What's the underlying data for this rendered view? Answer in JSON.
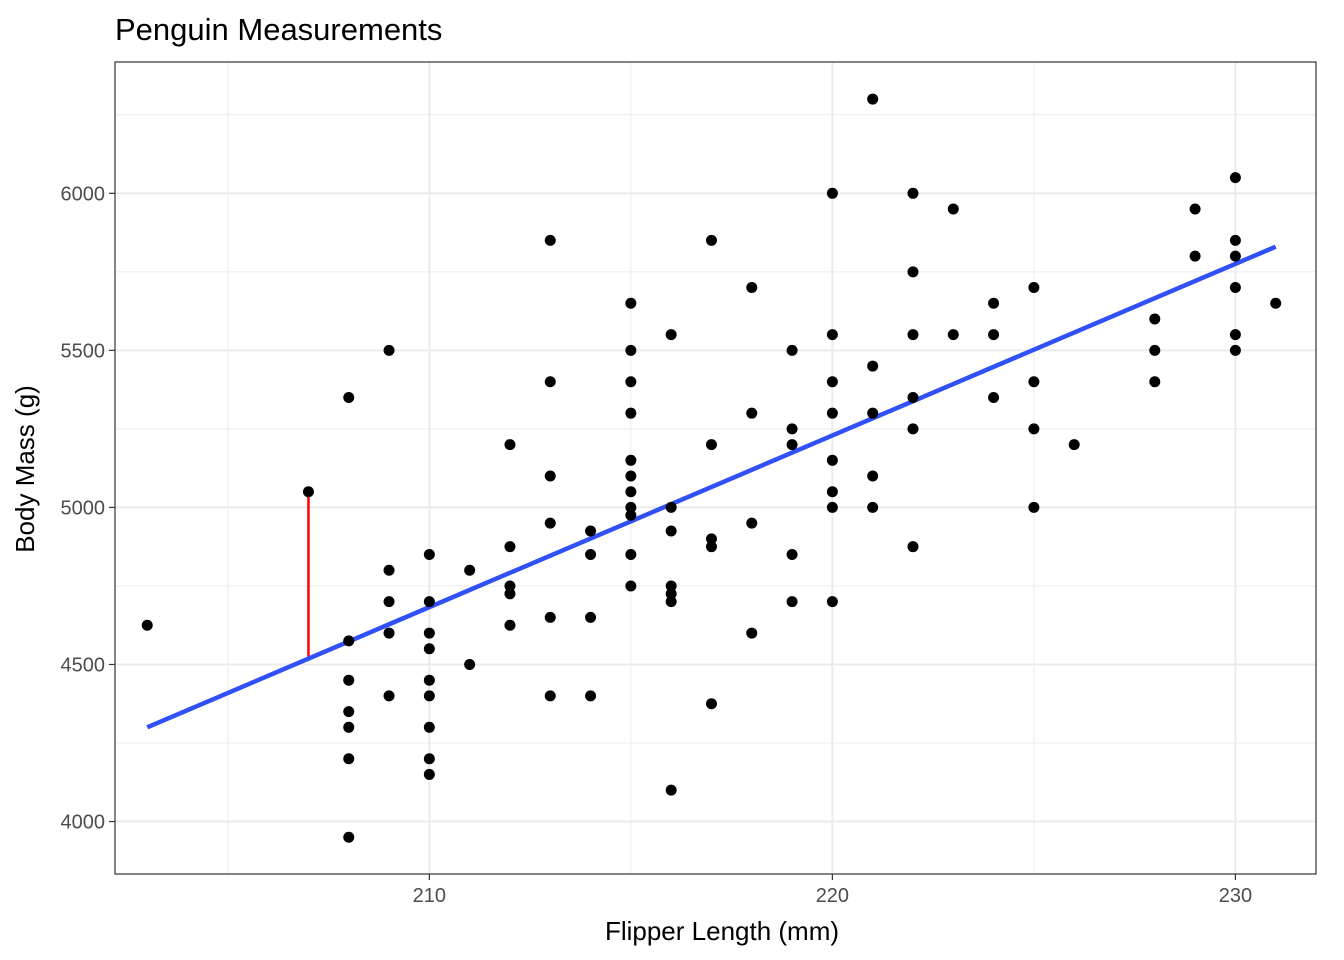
{
  "chart_data": {
    "type": "scatter",
    "title": "Penguin Measurements",
    "xlabel": "Flipper Length (mm)",
    "ylabel": "Body Mass (g)",
    "xlim": [
      202.2,
      232.0
    ],
    "ylim": [
      3833,
      6418
    ],
    "x_ticks": [
      210,
      220,
      230
    ],
    "x_tick_labels": [
      "210",
      "220",
      "230"
    ],
    "x_minor_ticks": [
      205,
      215,
      225
    ],
    "y_ticks": [
      4000,
      4500,
      5000,
      5500,
      6000
    ],
    "y_tick_labels": [
      "4000",
      "4500",
      "5000",
      "5500",
      "6000"
    ],
    "y_minor_ticks": [
      4250,
      4750,
      5250,
      5750,
      6250
    ],
    "grid": true,
    "legend": "none",
    "colors": {
      "points": "#000000",
      "fit_line": "#3050f8",
      "residual": "#ff0000",
      "grid": "#ebebeb",
      "panel_border": "#333333"
    },
    "fit_line": {
      "x": [
        203,
        231
      ],
      "y": [
        4300,
        5830
      ]
    },
    "highlight_residual": {
      "x": 207,
      "y_observed": 5050,
      "y_fitted": 4520
    },
    "points": [
      [
        203,
        4625
      ],
      [
        207,
        5050
      ],
      [
        208,
        5350
      ],
      [
        208,
        4575
      ],
      [
        208,
        4450
      ],
      [
        208,
        4350
      ],
      [
        208,
        4300
      ],
      [
        208,
        4200
      ],
      [
        208,
        3950
      ],
      [
        209,
        5500
      ],
      [
        209,
        4800
      ],
      [
        209,
        4700
      ],
      [
        209,
        4600
      ],
      [
        209,
        4400
      ],
      [
        210,
        4850
      ],
      [
        210,
        4700
      ],
      [
        210,
        4600
      ],
      [
        210,
        4550
      ],
      [
        210,
        4450
      ],
      [
        210,
        4400
      ],
      [
        210,
        4300
      ],
      [
        210,
        4200
      ],
      [
        210,
        4150
      ],
      [
        211,
        4800
      ],
      [
        211,
        4500
      ],
      [
        212,
        5200
      ],
      [
        212,
        4875
      ],
      [
        212,
        4750
      ],
      [
        212,
        4725
      ],
      [
        212,
        4625
      ],
      [
        213,
        5850
      ],
      [
        213,
        5400
      ],
      [
        213,
        5100
      ],
      [
        213,
        4950
      ],
      [
        213,
        4650
      ],
      [
        213,
        4400
      ],
      [
        214,
        4925
      ],
      [
        214,
        4850
      ],
      [
        214,
        4650
      ],
      [
        214,
        4400
      ],
      [
        215,
        5650
      ],
      [
        215,
        5500
      ],
      [
        215,
        5400
      ],
      [
        215,
        5300
      ],
      [
        215,
        5150
      ],
      [
        215,
        5100
      ],
      [
        215,
        5050
      ],
      [
        215,
        5000
      ],
      [
        215,
        4975
      ],
      [
        215,
        4850
      ],
      [
        215,
        4750
      ],
      [
        216,
        5550
      ],
      [
        216,
        5000
      ],
      [
        216,
        4925
      ],
      [
        216,
        4750
      ],
      [
        216,
        4725
      ],
      [
        216,
        4700
      ],
      [
        216,
        4100
      ],
      [
        217,
        5850
      ],
      [
        217,
        5200
      ],
      [
        217,
        4900
      ],
      [
        217,
        4875
      ],
      [
        217,
        4375
      ],
      [
        218,
        5700
      ],
      [
        218,
        5300
      ],
      [
        218,
        4950
      ],
      [
        218,
        4600
      ],
      [
        219,
        5500
      ],
      [
        219,
        5250
      ],
      [
        219,
        5200
      ],
      [
        219,
        4850
      ],
      [
        219,
        4700
      ],
      [
        220,
        6000
      ],
      [
        220,
        5550
      ],
      [
        220,
        5400
      ],
      [
        220,
        5300
      ],
      [
        220,
        5150
      ],
      [
        220,
        5050
      ],
      [
        220,
        5000
      ],
      [
        220,
        4700
      ],
      [
        221,
        6300
      ],
      [
        221,
        5450
      ],
      [
        221,
        5300
      ],
      [
        221,
        5100
      ],
      [
        221,
        5000
      ],
      [
        222,
        6000
      ],
      [
        222,
        5750
      ],
      [
        222,
        5550
      ],
      [
        222,
        5350
      ],
      [
        222,
        5250
      ],
      [
        222,
        4875
      ],
      [
        223,
        5950
      ],
      [
        223,
        5550
      ],
      [
        224,
        5650
      ],
      [
        224,
        5550
      ],
      [
        224,
        5350
      ],
      [
        225,
        5700
      ],
      [
        225,
        5400
      ],
      [
        225,
        5250
      ],
      [
        225,
        5000
      ],
      [
        226,
        5200
      ],
      [
        228,
        5600
      ],
      [
        228,
        5500
      ],
      [
        228,
        5400
      ],
      [
        229,
        5950
      ],
      [
        229,
        5800
      ],
      [
        230,
        6050
      ],
      [
        230,
        5850
      ],
      [
        230,
        5800
      ],
      [
        230,
        5700
      ],
      [
        230,
        5550
      ],
      [
        230,
        5500
      ],
      [
        231,
        5650
      ]
    ]
  }
}
